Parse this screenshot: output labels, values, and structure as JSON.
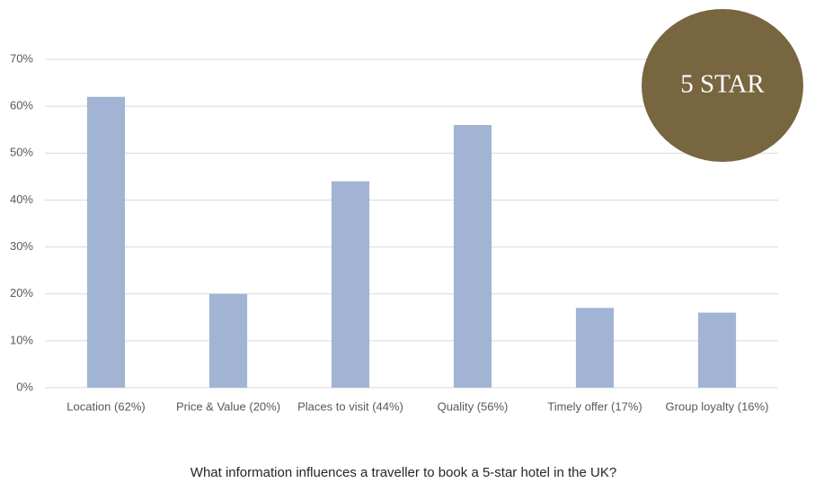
{
  "chart_data": {
    "type": "bar",
    "title": "What information influences a traveller to book a 5-star hotel in the UK?",
    "annotation": "5 STAR",
    "categories": [
      "Location (62%)",
      "Price & Value (20%)",
      "Places to visit (44%)",
      "Quality (56%)",
      "Timely offer (17%)",
      "Group loyalty (16%)"
    ],
    "values": [
      62,
      20,
      44,
      56,
      17,
      16
    ],
    "color": "#a2b4d3",
    "ylim": [
      0,
      70
    ],
    "yticks": [
      {
        "value": 0,
        "label": "0%"
      },
      {
        "value": 10,
        "label": "10%"
      },
      {
        "value": 20,
        "label": "20%"
      },
      {
        "value": 30,
        "label": "30%"
      },
      {
        "value": 40,
        "label": "40%"
      },
      {
        "value": 50,
        "label": "50%"
      },
      {
        "value": 60,
        "label": "60%"
      },
      {
        "value": 70,
        "label": "70%"
      }
    ],
    "grid": true
  }
}
